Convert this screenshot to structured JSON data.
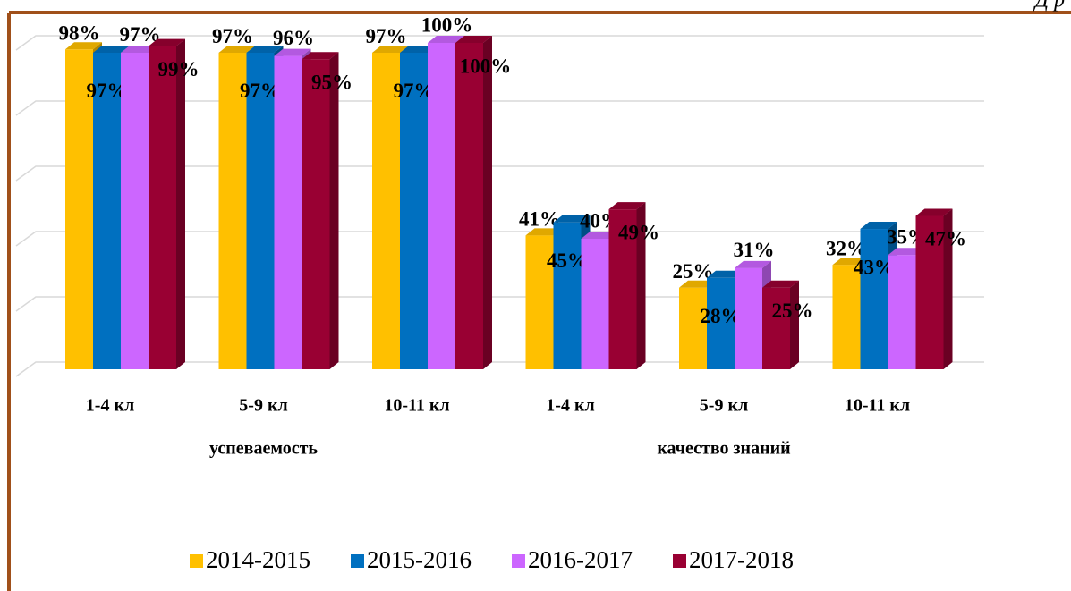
{
  "chart_data": {
    "type": "bar3d",
    "caption": "Д р",
    "categories": [
      "1-4 кл",
      "5-9 кл",
      "10-11 кл",
      "1-4 кл",
      "5-9 кл",
      "10-11 кл"
    ],
    "group_labels": [
      "успеваемость",
      "качество знаний"
    ],
    "series": [
      {
        "name": "2014-2015",
        "color": "#ffc000",
        "values": [
          98,
          97,
          97,
          41,
          25,
          32
        ],
        "value_labels": [
          "98%",
          "97%",
          "97%",
          "41%",
          "25%",
          "32%"
        ]
      },
      {
        "name": "2015-2016",
        "color": "#0070c0",
        "values": [
          97,
          97,
          97,
          45,
          28,
          43
        ],
        "value_labels": [
          "97%",
          "97%",
          "97%",
          "45%",
          "28%",
          "43%"
        ]
      },
      {
        "name": "2016-2017",
        "color": "#cc66ff",
        "values": [
          97,
          96,
          100,
          40,
          31,
          35
        ],
        "value_labels": [
          "97%",
          "96%",
          "100%",
          "40%",
          "31%",
          "35%"
        ]
      },
      {
        "name": "2017-2018",
        "color": "#990033",
        "values": [
          99,
          95,
          100,
          49,
          25,
          47
        ],
        "value_labels": [
          "99%",
          "95%",
          "100%",
          "49%",
          "25%",
          "47%"
        ]
      }
    ],
    "ylim": [
      0,
      100
    ],
    "yticks": [
      0,
      20,
      40,
      60,
      80,
      100
    ],
    "grid": true
  }
}
